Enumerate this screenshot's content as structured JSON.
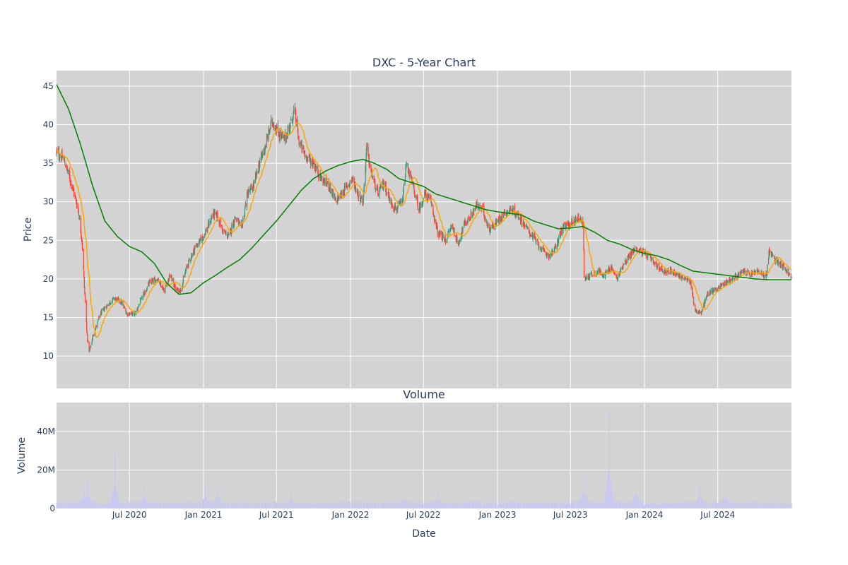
{
  "chart_data": [
    {
      "type": "candlestick",
      "title": "DXC - 5-Year Chart",
      "ylabel": "Price",
      "ylim": [
        5.8,
        47
      ],
      "yticks": [
        10,
        15,
        20,
        25,
        30,
        35,
        40,
        45
      ],
      "date_range": [
        "2020-01-02",
        "2024-12-31"
      ],
      "grid": true,
      "legend": "none",
      "colors": {
        "increasing": "#3d9970",
        "decreasing": "#ff4136",
        "ma_short": "#ffa500",
        "ma_long": "#008000",
        "plot_bg": "#d3d3d3"
      },
      "close_anchors": [
        [
          "2020-01-02",
          36.5
        ],
        [
          "2020-01-20",
          35.5
        ],
        [
          "2020-02-10",
          32.0
        ],
        [
          "2020-02-25",
          29.0
        ],
        [
          "2020-03-05",
          25.0
        ],
        [
          "2020-03-12",
          18.0
        ],
        [
          "2020-03-18",
          12.5
        ],
        [
          "2020-03-23",
          10.5
        ],
        [
          "2020-04-01",
          12.5
        ],
        [
          "2020-04-20",
          15.5
        ],
        [
          "2020-05-05",
          16.5
        ],
        [
          "2020-05-25",
          17.5
        ],
        [
          "2020-06-10",
          17.0
        ],
        [
          "2020-06-25",
          15.5
        ],
        [
          "2020-07-15",
          15.5
        ],
        [
          "2020-08-01",
          17.5
        ],
        [
          "2020-08-20",
          19.5
        ],
        [
          "2020-09-10",
          20.0
        ],
        [
          "2020-09-25",
          18.5
        ],
        [
          "2020-10-10",
          20.5
        ],
        [
          "2020-10-25",
          18.5
        ],
        [
          "2020-11-05",
          18.5
        ],
        [
          "2020-11-20",
          21.5
        ],
        [
          "2020-12-10",
          24.0
        ],
        [
          "2020-12-25",
          25.0
        ],
        [
          "2021-01-10",
          26.5
        ],
        [
          "2021-01-25",
          28.5
        ],
        [
          "2021-02-05",
          28.0
        ],
        [
          "2021-02-20",
          26.0
        ],
        [
          "2021-03-05",
          25.5
        ],
        [
          "2021-03-20",
          28.0
        ],
        [
          "2021-04-05",
          26.5
        ],
        [
          "2021-04-20",
          31.0
        ],
        [
          "2021-05-05",
          32.0
        ],
        [
          "2021-05-20",
          35.0
        ],
        [
          "2021-06-05",
          37.5
        ],
        [
          "2021-06-20",
          40.5
        ],
        [
          "2021-07-05",
          39.0
        ],
        [
          "2021-07-20",
          38.0
        ],
        [
          "2021-08-05",
          40.0
        ],
        [
          "2021-08-15",
          42.0
        ],
        [
          "2021-08-25",
          38.0
        ],
        [
          "2021-09-10",
          36.0
        ],
        [
          "2021-10-01",
          35.0
        ],
        [
          "2021-10-20",
          33.0
        ],
        [
          "2021-11-10",
          32.0
        ],
        [
          "2021-11-25",
          30.0
        ],
        [
          "2021-12-10",
          31.0
        ],
        [
          "2022-01-05",
          33.0
        ],
        [
          "2022-01-20",
          31.0
        ],
        [
          "2022-02-01",
          30.0
        ],
        [
          "2022-02-10",
          37.0
        ],
        [
          "2022-02-20",
          34.0
        ],
        [
          "2022-03-10",
          31.0
        ],
        [
          "2022-03-25",
          32.5
        ],
        [
          "2022-04-10",
          30.0
        ],
        [
          "2022-04-25",
          29.0
        ],
        [
          "2022-05-10",
          30.0
        ],
        [
          "2022-05-20",
          35.0
        ],
        [
          "2022-06-05",
          32.0
        ],
        [
          "2022-06-20",
          29.0
        ],
        [
          "2022-07-05",
          31.0
        ],
        [
          "2022-07-20",
          30.0
        ],
        [
          "2022-08-05",
          26.0
        ],
        [
          "2022-08-25",
          25.0
        ],
        [
          "2022-09-10",
          27.0
        ],
        [
          "2022-09-25",
          24.5
        ],
        [
          "2022-10-10",
          27.0
        ],
        [
          "2022-10-25",
          28.0
        ],
        [
          "2022-11-10",
          29.5
        ],
        [
          "2022-11-25",
          29.0
        ],
        [
          "2022-12-10",
          26.5
        ],
        [
          "2022-12-25",
          27.0
        ],
        [
          "2023-01-15",
          28.5
        ],
        [
          "2023-02-05",
          29.0
        ],
        [
          "2023-02-25",
          28.0
        ],
        [
          "2023-03-15",
          26.5
        ],
        [
          "2023-04-05",
          25.0
        ],
        [
          "2023-04-25",
          23.5
        ],
        [
          "2023-05-10",
          23.0
        ],
        [
          "2023-05-25",
          24.0
        ],
        [
          "2023-06-10",
          26.5
        ],
        [
          "2023-06-25",
          27.0
        ],
        [
          "2023-07-10",
          27.5
        ],
        [
          "2023-07-25",
          28.0
        ],
        [
          "2023-08-02",
          27.0
        ],
        [
          "2023-08-04",
          20.0
        ],
        [
          "2023-08-20",
          20.5
        ],
        [
          "2023-09-10",
          21.0
        ],
        [
          "2023-09-25",
          20.5
        ],
        [
          "2023-10-10",
          21.5
        ],
        [
          "2023-10-25",
          20.0
        ],
        [
          "2023-11-10",
          22.0
        ],
        [
          "2023-11-25",
          23.0
        ],
        [
          "2023-12-10",
          24.0
        ],
        [
          "2023-12-25",
          23.5
        ],
        [
          "2024-01-10",
          23.0
        ],
        [
          "2024-01-25",
          22.0
        ],
        [
          "2024-02-05",
          21.5
        ],
        [
          "2024-02-20",
          21.0
        ],
        [
          "2024-03-10",
          21.0
        ],
        [
          "2024-03-25",
          20.5
        ],
        [
          "2024-04-10",
          20.0
        ],
        [
          "2024-04-25",
          19.5
        ],
        [
          "2024-05-05",
          16.0
        ],
        [
          "2024-05-20",
          15.5
        ],
        [
          "2024-06-05",
          18.0
        ],
        [
          "2024-06-20",
          18.5
        ],
        [
          "2024-07-05",
          19.0
        ],
        [
          "2024-07-20",
          19.5
        ],
        [
          "2024-08-05",
          20.0
        ],
        [
          "2024-08-20",
          20.5
        ],
        [
          "2024-09-05",
          21.0
        ],
        [
          "2024-09-20",
          20.5
        ],
        [
          "2024-10-05",
          21.0
        ],
        [
          "2024-10-20",
          20.5
        ],
        [
          "2024-10-30",
          20.5
        ],
        [
          "2024-11-05",
          23.5
        ],
        [
          "2024-11-20",
          22.5
        ],
        [
          "2024-12-05",
          22.0
        ],
        [
          "2024-12-20",
          21.0
        ],
        [
          "2024-12-31",
          20.0
        ]
      ],
      "long_ma_anchors": [
        [
          "2020-01-02",
          45.2
        ],
        [
          "2020-02-01",
          42.0
        ],
        [
          "2020-03-01",
          37.5
        ],
        [
          "2020-04-01",
          32.0
        ],
        [
          "2020-05-01",
          27.5
        ],
        [
          "2020-06-01",
          25.5
        ],
        [
          "2020-07-01",
          24.2
        ],
        [
          "2020-08-01",
          23.5
        ],
        [
          "2020-09-01",
          22.0
        ],
        [
          "2020-10-01",
          19.5
        ],
        [
          "2020-11-01",
          18.0
        ],
        [
          "2020-12-01",
          18.2
        ],
        [
          "2021-01-01",
          19.5
        ],
        [
          "2021-02-01",
          20.5
        ],
        [
          "2021-03-01",
          21.5
        ],
        [
          "2021-04-01",
          22.5
        ],
        [
          "2021-05-01",
          24.0
        ],
        [
          "2021-06-01",
          25.8
        ],
        [
          "2021-07-01",
          27.5
        ],
        [
          "2021-08-01",
          29.5
        ],
        [
          "2021-09-01",
          31.5
        ],
        [
          "2021-10-01",
          33.0
        ],
        [
          "2021-11-01",
          34.0
        ],
        [
          "2021-12-01",
          34.7
        ],
        [
          "2022-01-01",
          35.2
        ],
        [
          "2022-02-01",
          35.5
        ],
        [
          "2022-03-01",
          35.0
        ],
        [
          "2022-04-01",
          34.2
        ],
        [
          "2022-05-01",
          33.0
        ],
        [
          "2022-06-01",
          32.5
        ],
        [
          "2022-07-01",
          32.0
        ],
        [
          "2022-08-01",
          31.0
        ],
        [
          "2022-09-01",
          30.5
        ],
        [
          "2022-10-01",
          30.0
        ],
        [
          "2022-11-01",
          29.5
        ],
        [
          "2022-12-01",
          29.0
        ],
        [
          "2023-01-01",
          28.7
        ],
        [
          "2023-02-01",
          28.5
        ],
        [
          "2023-03-01",
          28.3
        ],
        [
          "2023-04-01",
          27.5
        ],
        [
          "2023-05-01",
          27.0
        ],
        [
          "2023-06-01",
          26.5
        ],
        [
          "2023-07-01",
          26.6
        ],
        [
          "2023-08-01",
          26.8
        ],
        [
          "2023-09-01",
          26.0
        ],
        [
          "2023-10-01",
          25.0
        ],
        [
          "2023-11-01",
          24.5
        ],
        [
          "2023-12-01",
          23.8
        ],
        [
          "2024-01-01",
          23.3
        ],
        [
          "2024-02-01",
          23.0
        ],
        [
          "2024-03-01",
          22.5
        ],
        [
          "2024-04-01",
          21.7
        ],
        [
          "2024-05-01",
          21.0
        ],
        [
          "2024-06-01",
          20.8
        ],
        [
          "2024-07-01",
          20.6
        ],
        [
          "2024-08-01",
          20.4
        ],
        [
          "2024-09-01",
          20.2
        ],
        [
          "2024-10-01",
          20.0
        ],
        [
          "2024-11-01",
          19.9
        ],
        [
          "2024-12-31",
          19.9
        ]
      ]
    },
    {
      "type": "bar",
      "title": "Volume",
      "xlabel": "Date",
      "ylabel": "Volume",
      "ylim": [
        0,
        55000000
      ],
      "yticks": [
        0,
        20000000,
        40000000
      ],
      "ytick_labels": [
        "0",
        "20M",
        "40M"
      ],
      "x_ticks": [
        {
          "date": "2020-07-01",
          "label": "Jul 2020"
        },
        {
          "date": "2021-01-01",
          "label": "Jan 2021"
        },
        {
          "date": "2021-07-01",
          "label": "Jul 2021"
        },
        {
          "date": "2022-01-01",
          "label": "Jan 2022"
        },
        {
          "date": "2022-07-01",
          "label": "Jul 2022"
        },
        {
          "date": "2023-01-01",
          "label": "Jan 2023"
        },
        {
          "date": "2023-07-01",
          "label": "Jul 2023"
        },
        {
          "date": "2024-01-01",
          "label": "Jan 2024"
        },
        {
          "date": "2024-07-01",
          "label": "Jul 2024"
        }
      ],
      "bar_color": "#c8c8f0",
      "typical_volume": 2500000,
      "volume_spikes": [
        [
          "2020-03-20",
          14000000
        ],
        [
          "2020-03-10",
          11000000
        ],
        [
          "2020-05-26",
          29000000
        ],
        [
          "2020-08-05",
          11000000
        ],
        [
          "2021-01-05",
          11000000
        ],
        [
          "2021-02-05",
          13000000
        ],
        [
          "2021-08-06",
          8000000
        ],
        [
          "2022-05-15",
          8000000
        ],
        [
          "2022-08-05",
          9000000
        ],
        [
          "2023-08-04",
          17000000
        ],
        [
          "2023-10-05",
          52000000
        ],
        [
          "2023-12-10",
          16000000
        ],
        [
          "2024-05-17",
          13000000
        ],
        [
          "2024-07-20",
          11000000
        ]
      ]
    }
  ]
}
